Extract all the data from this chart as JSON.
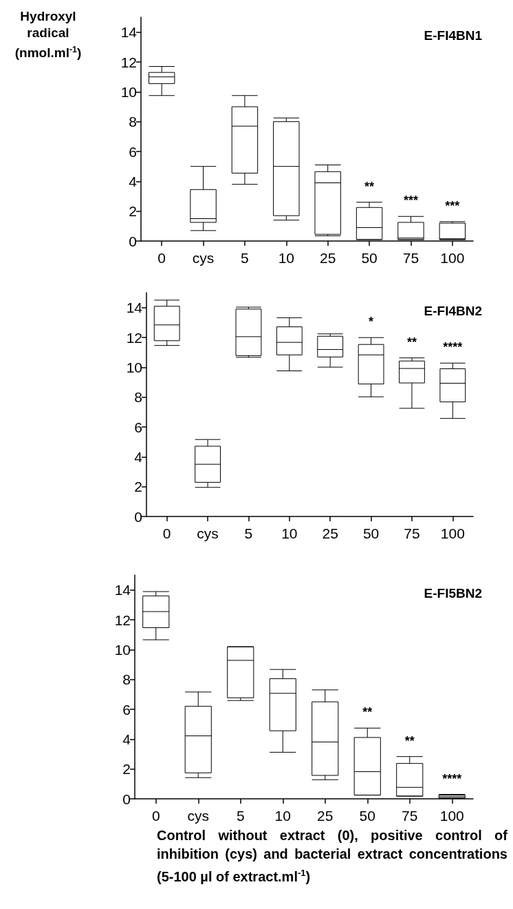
{
  "chart_data": [
    {
      "type": "box",
      "title": "E-FI4BN1",
      "ylabel": "Hydroxyl radical (nmol.ml$^{-1}$)",
      "categories": [
        "0",
        "cys",
        "5",
        "10",
        "25",
        "50",
        "75",
        "100"
      ],
      "ylim": [
        0,
        15
      ],
      "yticks": [
        0,
        2,
        4,
        6,
        8,
        10,
        12,
        14
      ],
      "grid": false,
      "boxes": [
        {
          "low": 9.75,
          "q1": 10.55,
          "median": 11.0,
          "q3": 11.3,
          "high": 11.7
        },
        {
          "low": 0.7,
          "q1": 1.25,
          "median": 1.5,
          "q3": 3.45,
          "high": 5.0
        },
        {
          "low": 3.8,
          "q1": 4.55,
          "median": 7.7,
          "q3": 9.0,
          "high": 9.75
        },
        {
          "low": 1.4,
          "q1": 1.7,
          "median": 5.0,
          "q3": 8.0,
          "high": 8.25
        },
        {
          "low": 0.35,
          "q1": 0.45,
          "median": 3.9,
          "q3": 4.65,
          "high": 5.1
        },
        {
          "low": 0.1,
          "q1": 0.1,
          "median": 0.9,
          "q3": 2.25,
          "high": 2.6
        },
        {
          "low": 0.1,
          "q1": 0.1,
          "median": 0.2,
          "q3": 1.25,
          "high": 1.65
        },
        {
          "low": 0.1,
          "q1": 0.1,
          "median": 0.15,
          "q3": 1.2,
          "high": 1.3
        }
      ],
      "annotations": [
        "**",
        "***",
        "***"
      ]
    },
    {
      "type": "box",
      "title": "E-FI4BN2",
      "categories": [
        "0",
        "cys",
        "5",
        "10",
        "25",
        "50",
        "75",
        "100"
      ],
      "ylim": [
        0,
        15
      ],
      "yticks": [
        0,
        2,
        4,
        6,
        8,
        10,
        12,
        14
      ],
      "grid": false,
      "boxes": [
        {
          "low": 11.46,
          "q1": 11.78,
          "median": 12.84,
          "q3": 14.09,
          "high": 14.5
        },
        {
          "low": 1.95,
          "q1": 2.29,
          "median": 3.5,
          "q3": 4.71,
          "high": 5.16
        },
        {
          "low": 10.67,
          "q1": 10.78,
          "median": 12.05,
          "q3": 13.9,
          "high": 14.03
        },
        {
          "low": 9.76,
          "q1": 10.83,
          "median": 11.67,
          "q3": 12.71,
          "high": 13.32
        },
        {
          "low": 10.01,
          "q1": 10.69,
          "median": 11.19,
          "q3": 12.08,
          "high": 12.24
        },
        {
          "low": 8.02,
          "q1": 8.88,
          "median": 10.83,
          "q3": 11.53,
          "high": 11.99
        },
        {
          "low": 7.25,
          "q1": 8.95,
          "median": 9.92,
          "q3": 10.42,
          "high": 10.63
        },
        {
          "low": 6.57,
          "q1": 7.68,
          "median": 8.93,
          "q3": 9.9,
          "high": 10.28
        }
      ],
      "annotations": [
        "*",
        "**",
        "****"
      ]
    },
    {
      "type": "box",
      "title": "E-FI5BN2",
      "xlabel": "Control without extract (0), positive control of inhibition (cys) and bacterial extract concentrations (5-100 µl of extract.ml$^{-1}$)",
      "categories": [
        "0",
        "cys",
        "5",
        "10",
        "25",
        "50",
        "75",
        "100"
      ],
      "ylim": [
        0,
        15
      ],
      "yticks": [
        0,
        2,
        4,
        6,
        8,
        10,
        12,
        14
      ],
      "grid": false,
      "boxes": [
        {
          "low": 10.66,
          "q1": 11.47,
          "median": 12.55,
          "q3": 13.6,
          "high": 13.89
        },
        {
          "low": 1.42,
          "q1": 1.74,
          "median": 4.22,
          "q3": 6.2,
          "high": 7.16
        },
        {
          "low": 6.59,
          "q1": 6.77,
          "median": 9.28,
          "q3": 10.18,
          "high": 10.2
        },
        {
          "low": 3.12,
          "q1": 4.56,
          "median": 7.07,
          "q3": 8.05,
          "high": 8.67
        },
        {
          "low": 1.28,
          "q1": 1.57,
          "median": 3.81,
          "q3": 6.5,
          "high": 7.3
        },
        {
          "low": 0.25,
          "q1": 0.25,
          "median": 1.82,
          "q3": 4.11,
          "high": 4.74
        },
        {
          "low": 0.18,
          "q1": 0.18,
          "median": 0.77,
          "q3": 2.37,
          "high": 2.83
        },
        {
          "low": 0.05,
          "q1": 0.05,
          "median": 0.15,
          "q3": 0.25,
          "high": 0.3
        }
      ],
      "annotations": [
        "**",
        "**",
        "****"
      ]
    }
  ]
}
